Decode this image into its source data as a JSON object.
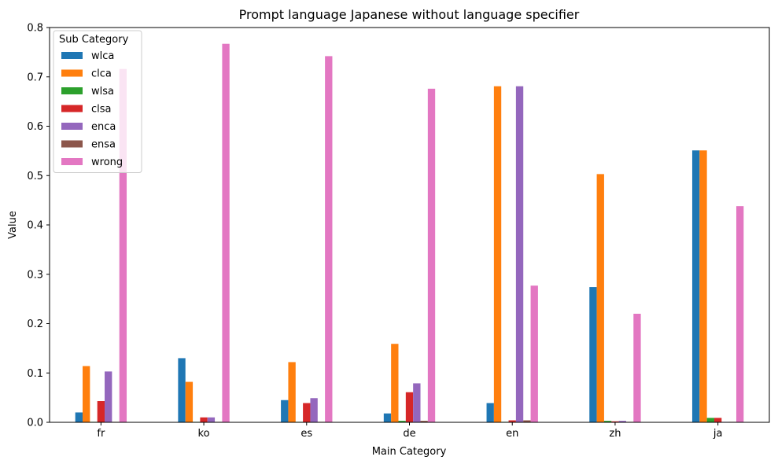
{
  "chart_data": {
    "type": "bar",
    "title": "Prompt language Japanese without language specifier",
    "xlabel": "Main Category",
    "ylabel": "Value",
    "ylim": [
      0,
      0.8
    ],
    "yticks": [
      0.0,
      0.1,
      0.2,
      0.3,
      0.4,
      0.5,
      0.6,
      0.7,
      0.8
    ],
    "ytick_labels": [
      "0.0",
      "0.1",
      "0.2",
      "0.3",
      "0.4",
      "0.5",
      "0.6",
      "0.7",
      "0.8"
    ],
    "categories": [
      "fr",
      "ko",
      "es",
      "de",
      "en",
      "zh",
      "ja"
    ],
    "legend": {
      "title": "Sub Category",
      "placement": "top-left"
    },
    "grid": false,
    "series": [
      {
        "name": "wlca",
        "color": "#1f77b4",
        "values": [
          0.02,
          0.13,
          0.045,
          0.018,
          0.039,
          0.274,
          0.551
        ]
      },
      {
        "name": "clca",
        "color": "#ff7f0e",
        "values": [
          0.114,
          0.082,
          0.122,
          0.159,
          0.681,
          0.503,
          0.551
        ]
      },
      {
        "name": "wlsa",
        "color": "#2ca02c",
        "values": [
          0.001,
          0.001,
          0.001,
          0.003,
          0.001,
          0.003,
          0.009
        ]
      },
      {
        "name": "clsa",
        "color": "#d62728",
        "values": [
          0.043,
          0.01,
          0.039,
          0.061,
          0.004,
          0.002,
          0.009
        ]
      },
      {
        "name": "enca",
        "color": "#9467bd",
        "values": [
          0.103,
          0.01,
          0.049,
          0.079,
          0.681,
          0.003,
          0.001
        ]
      },
      {
        "name": "ensa",
        "color": "#8c564b",
        "values": [
          0.001,
          0.001,
          0.001,
          0.003,
          0.004,
          0.001,
          0.001
        ]
      },
      {
        "name": "wrong",
        "color": "#e377c2",
        "values": [
          0.716,
          0.767,
          0.742,
          0.676,
          0.277,
          0.22,
          0.438
        ]
      }
    ]
  }
}
